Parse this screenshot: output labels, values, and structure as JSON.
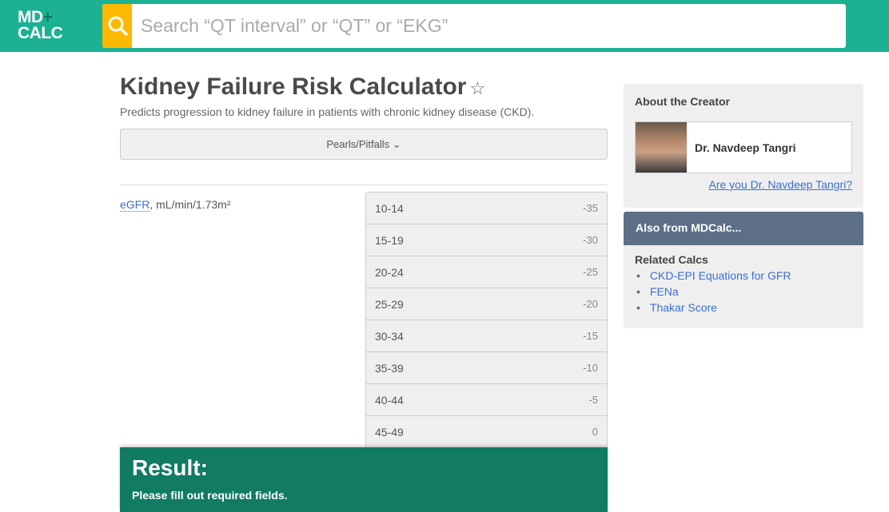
{
  "header": {
    "logo_line1": "MD",
    "logo_plus": "+",
    "logo_line2": "CALC",
    "search_placeholder": "Search “QT interval” or “QT” or “EKG”"
  },
  "calc": {
    "title": "Kidney Failure Risk Calculator",
    "subtitle": "Predicts progression to kidney failure in patients with chronic kidney disease (CKD).",
    "pearls": "Pearls/Pitfalls",
    "field_link": "eGFR",
    "field_rest": ", mL/min/1.73m²",
    "options": [
      {
        "label": "10-14",
        "points": "-35"
      },
      {
        "label": "15-19",
        "points": "-30"
      },
      {
        "label": "20-24",
        "points": "-25"
      },
      {
        "label": "25-29",
        "points": "-20"
      },
      {
        "label": "30-34",
        "points": "-15"
      },
      {
        "label": "35-39",
        "points": "-10"
      },
      {
        "label": "40-44",
        "points": "-5"
      },
      {
        "label": "45-49",
        "points": "0"
      }
    ]
  },
  "result": {
    "title": "Result:",
    "message": "Please fill out required fields."
  },
  "sidebar": {
    "about_title": "About the Creator",
    "creator": "Dr. Navdeep Tangri",
    "claim": "Are you Dr. Navdeep Tangri?",
    "also_title": "Also from MDCalc...",
    "related_title": "Related Calcs",
    "related": [
      "CKD-EPI Equations for GFR",
      "FENa",
      "Thakar Score"
    ]
  },
  "colors": {
    "brand": "#1bb192",
    "search_button": "#fcb900",
    "result": "#117b63",
    "also_header": "#5c6f86"
  }
}
